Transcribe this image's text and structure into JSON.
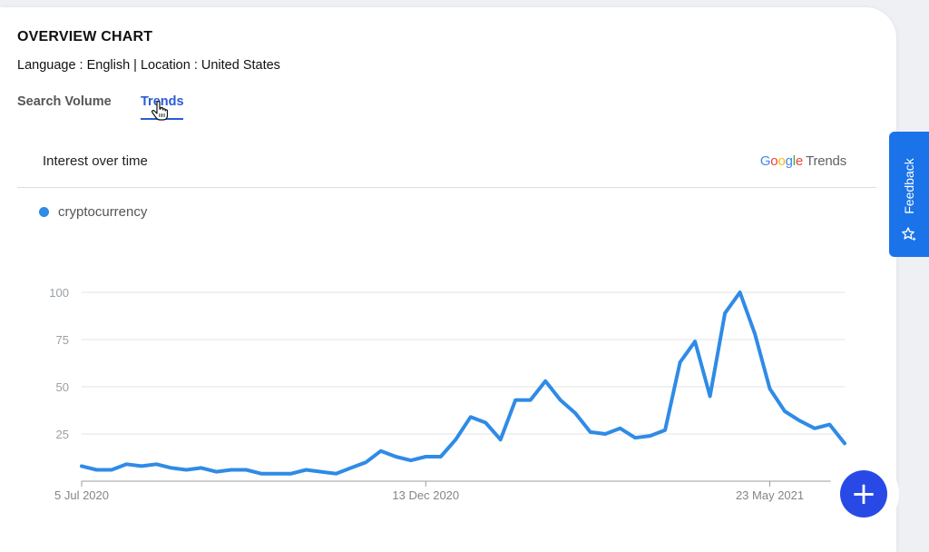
{
  "header": {
    "title": "OVERVIEW CHART",
    "subtitle": "Language : English | Location : United States"
  },
  "tabs": [
    {
      "label": "Search Volume",
      "active": false
    },
    {
      "label": "Trends",
      "active": true
    }
  ],
  "panel": {
    "title": "Interest over time",
    "logo_google": "Google",
    "logo_trends": "Trends"
  },
  "feedback_label": "Feedback",
  "fab_label": "+",
  "colors": {
    "accent": "#2a5bd7",
    "series": "#2f8be6",
    "feedback": "#1a73e8",
    "fab": "#2949e6",
    "google": [
      "#4285f4",
      "#ea4335",
      "#fbbc05",
      "#4285f4",
      "#34a853",
      "#ea4335"
    ]
  },
  "icons": [
    "cursor-hand-icon",
    "feedback-star-icon",
    "plus-icon"
  ],
  "chart_data": {
    "type": "line",
    "title": "Interest over time",
    "xlabel": "",
    "ylabel": "",
    "ylim": [
      0,
      100
    ],
    "yticks": [
      25,
      50,
      75,
      100
    ],
    "grid": true,
    "legend": "top-left",
    "x_tick_labels": [
      {
        "index": 0,
        "label": "5 Jul 2020"
      },
      {
        "index": 23,
        "label": "13 Dec 2020"
      },
      {
        "index": 46,
        "label": "23 May 2021"
      }
    ],
    "series": [
      {
        "name": "cryptocurrency",
        "values": [
          8,
          6,
          6,
          9,
          8,
          9,
          7,
          6,
          7,
          5,
          6,
          6,
          4,
          4,
          4,
          6,
          5,
          4,
          7,
          10,
          16,
          13,
          11,
          13,
          13,
          22,
          34,
          31,
          22,
          43,
          43,
          53,
          43,
          36,
          26,
          25,
          28,
          23,
          24,
          27,
          63,
          74,
          45,
          89,
          100,
          78,
          49,
          37,
          32,
          28,
          30,
          20
        ]
      }
    ]
  }
}
